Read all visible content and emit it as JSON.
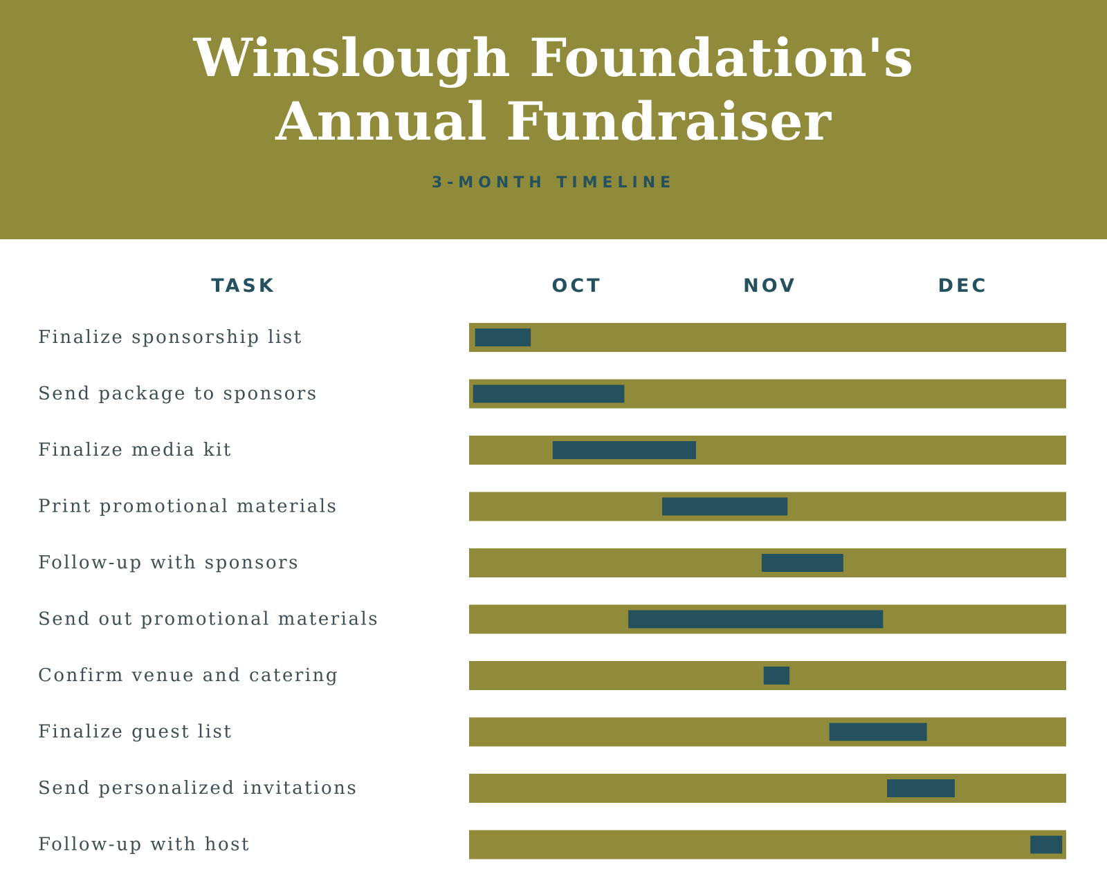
{
  "header": {
    "title_line1": "Winslough Foundation's",
    "title_line2": "Annual Fundraiser",
    "subtitle": "3-MONTH TIMELINE"
  },
  "colors": {
    "header_bg": "#8f8b3b",
    "track": "#8f8b3b",
    "bar": "#25515e",
    "title_text": "#ffffff",
    "label_text": "#3d4f55"
  },
  "chart_data": {
    "type": "gantt",
    "task_column_label": "TASK",
    "months": [
      "OCT",
      "NOV",
      "DEC"
    ],
    "x_range_months": [
      0,
      3
    ],
    "tasks": [
      {
        "name": "Finalize sponsorship list",
        "start": 0.03,
        "end": 0.31
      },
      {
        "name": "Send package to sponsors",
        "start": 0.02,
        "end": 0.78
      },
      {
        "name": "Finalize media kit",
        "start": 0.42,
        "end": 1.14
      },
      {
        "name": "Print promotional materials",
        "start": 0.97,
        "end": 1.6
      },
      {
        "name": "Follow-up with sponsors",
        "start": 1.47,
        "end": 1.88
      },
      {
        "name": "Send out promotional materials",
        "start": 0.8,
        "end": 2.08
      },
      {
        "name": "Confirm venue and catering",
        "start": 1.48,
        "end": 1.61
      },
      {
        "name": "Finalize guest list",
        "start": 1.81,
        "end": 2.3
      },
      {
        "name": "Send personalized invitations",
        "start": 2.1,
        "end": 2.44
      },
      {
        "name": "Follow-up with host",
        "start": 2.82,
        "end": 2.98
      }
    ]
  }
}
